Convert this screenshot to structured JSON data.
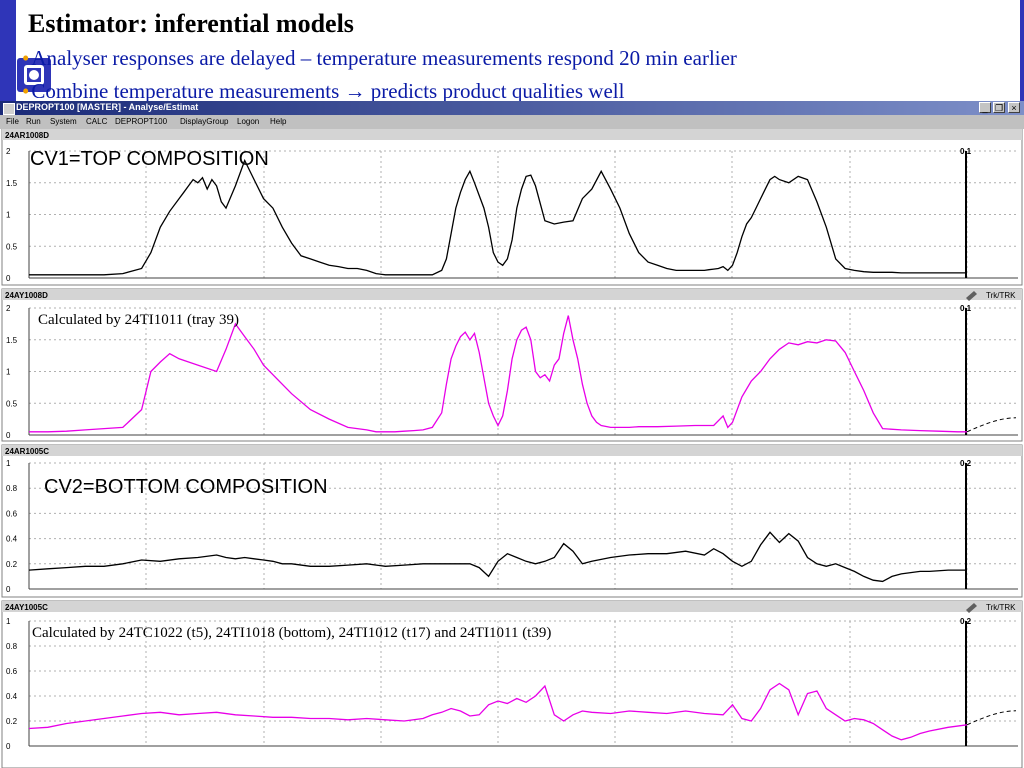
{
  "slide": {
    "title": "Estimator: inferential models",
    "bullet1": "Analyser responses are delayed – temperature measurements respond 20 min earlier",
    "bullet2": "Combine temperature measurements → predicts product qualities well",
    "accent_color": "#2f35b8",
    "bullet_color": "#0a1aa6"
  },
  "window": {
    "title": "DEPROPT100 [MASTER]  - Analyse/Estimat",
    "buttons": {
      "minimize": "_",
      "restore": "❐",
      "close": "×"
    },
    "menu": [
      "File",
      "Run",
      "System",
      "CALC",
      "DEPROPT100",
      "DisplayGroup",
      "Logon",
      "Help"
    ]
  },
  "chart_data": [
    {
      "type": "line",
      "panel_title": "24AR1008D",
      "label": "CV1=TOP COMPOSITION",
      "value_label": "0.1",
      "ylim": [
        0,
        2
      ],
      "yticks": [
        "0",
        "0.5",
        "1",
        "1.5",
        "2"
      ],
      "grid": true,
      "color": "#000000",
      "x": [
        0,
        4,
        8,
        12,
        16,
        20,
        24,
        26,
        28,
        30,
        32,
        33,
        34,
        35,
        36,
        37,
        38,
        39,
        40,
        41,
        42,
        44,
        46,
        48,
        50,
        52,
        54,
        56,
        58,
        60,
        62,
        64,
        66,
        68,
        70,
        72,
        74,
        76,
        78,
        80,
        82,
        84,
        86,
        88,
        89,
        90,
        91,
        92,
        93,
        94,
        95,
        96,
        97,
        98,
        99,
        100,
        101,
        102,
        103,
        104,
        105,
        106,
        107,
        108,
        110,
        112,
        114,
        116,
        118,
        120,
        122,
        124,
        126,
        128,
        130,
        132,
        134,
        136,
        138,
        140,
        141,
        142,
        143,
        144,
        145,
        146,
        147,
        148,
        149,
        150,
        151,
        152,
        153,
        154,
        155,
        156,
        157,
        158,
        159,
        160,
        162,
        164,
        166,
        168,
        170,
        172,
        174,
        176,
        178,
        180,
        182,
        184,
        186,
        188,
        190,
        192,
        194,
        196,
        198,
        200
      ],
      "values": [
        0.05,
        0.05,
        0.05,
        0.05,
        0.05,
        0.07,
        0.15,
        0.4,
        0.8,
        1.05,
        1.25,
        1.35,
        1.45,
        1.55,
        1.5,
        1.58,
        1.4,
        1.55,
        1.45,
        1.2,
        1.1,
        1.45,
        1.85,
        1.55,
        1.25,
        1.1,
        0.8,
        0.55,
        0.35,
        0.3,
        0.25,
        0.2,
        0.18,
        0.15,
        0.15,
        0.12,
        0.07,
        0.05,
        0.05,
        0.05,
        0.05,
        0.05,
        0.05,
        0.12,
        0.3,
        0.7,
        1.1,
        1.35,
        1.55,
        1.68,
        1.5,
        1.3,
        1.1,
        0.8,
        0.4,
        0.25,
        0.2,
        0.3,
        0.6,
        1.1,
        1.4,
        1.6,
        1.62,
        1.45,
        0.9,
        0.85,
        0.88,
        0.9,
        1.25,
        1.4,
        1.68,
        1.4,
        1.1,
        0.7,
        0.4,
        0.25,
        0.2,
        0.15,
        0.12,
        0.12,
        0.12,
        0.12,
        0.12,
        0.12,
        0.13,
        0.14,
        0.15,
        0.18,
        0.12,
        0.2,
        0.4,
        0.65,
        0.85,
        0.95,
        1.1,
        1.25,
        1.4,
        1.55,
        1.6,
        1.55,
        1.5,
        1.6,
        1.55,
        1.2,
        0.8,
        0.3,
        0.15,
        0.12,
        0.1,
        0.09,
        0.09,
        0.09,
        0.08,
        0.08,
        0.08,
        0.08,
        0.08,
        0.08,
        0.08,
        0.08
      ]
    },
    {
      "type": "line",
      "panel_title": "24AY1008D",
      "label": "Calculated by 24TI1011 (tray 39)",
      "value_label": "0.1",
      "trk_label": "Trk/TRK",
      "ylim": [
        0,
        2
      ],
      "yticks": [
        "0",
        "0.5",
        "1",
        "1.5",
        "2"
      ],
      "grid": true,
      "color": "#e800e8",
      "x": [
        0,
        4,
        8,
        12,
        16,
        20,
        24,
        26,
        28,
        30,
        32,
        36,
        40,
        42,
        44,
        46,
        48,
        50,
        52,
        56,
        60,
        64,
        68,
        72,
        74,
        76,
        78,
        80,
        82,
        84,
        86,
        88,
        89,
        90,
        91,
        92,
        93,
        94,
        95,
        96,
        97,
        98,
        99,
        100,
        101,
        102,
        103,
        104,
        105,
        106,
        107,
        108,
        109,
        110,
        111,
        112,
        113,
        114,
        115,
        116,
        117,
        118,
        119,
        120,
        121,
        122,
        124,
        126,
        128,
        130,
        134,
        138,
        142,
        146,
        148,
        149,
        150,
        152,
        154,
        156,
        158,
        160,
        162,
        164,
        166,
        168,
        170,
        172,
        174,
        176,
        178,
        180,
        182,
        186,
        190,
        194,
        198,
        200
      ],
      "values": [
        0.05,
        0.05,
        0.06,
        0.08,
        0.1,
        0.12,
        0.4,
        1.0,
        1.15,
        1.28,
        1.2,
        1.1,
        1.0,
        1.35,
        1.75,
        1.55,
        1.35,
        1.1,
        0.95,
        0.65,
        0.4,
        0.25,
        0.12,
        0.08,
        0.05,
        0.05,
        0.05,
        0.06,
        0.07,
        0.08,
        0.12,
        0.35,
        0.8,
        1.2,
        1.4,
        1.55,
        1.62,
        1.5,
        1.6,
        1.3,
        0.9,
        0.5,
        0.3,
        0.15,
        0.3,
        0.7,
        1.2,
        1.5,
        1.65,
        1.7,
        1.5,
        1.0,
        0.9,
        0.95,
        0.85,
        1.1,
        1.2,
        1.6,
        1.88,
        1.5,
        1.2,
        0.8,
        0.5,
        0.3,
        0.2,
        0.15,
        0.12,
        0.12,
        0.12,
        0.13,
        0.13,
        0.14,
        0.15,
        0.15,
        0.3,
        0.12,
        0.2,
        0.6,
        0.85,
        1.0,
        1.2,
        1.35,
        1.45,
        1.42,
        1.47,
        1.45,
        1.5,
        1.48,
        1.3,
        1.0,
        0.7,
        0.35,
        0.1,
        0.08,
        0.07,
        0.06,
        0.05,
        0.05
      ]
    },
    {
      "type": "line",
      "panel_title": "24AR1005C",
      "label": "CV2=BOTTOM COMPOSITION",
      "value_label": "0.2",
      "ylim": [
        0,
        1
      ],
      "yticks": [
        "0",
        "0.2",
        "0.4",
        "0.6",
        "0.8",
        "1"
      ],
      "grid": true,
      "color": "#000000",
      "x": [
        0,
        4,
        8,
        12,
        16,
        20,
        24,
        28,
        32,
        36,
        40,
        42,
        44,
        46,
        48,
        50,
        52,
        54,
        56,
        60,
        64,
        68,
        72,
        76,
        80,
        84,
        88,
        92,
        94,
        96,
        98,
        100,
        102,
        104,
        106,
        108,
        110,
        112,
        114,
        116,
        118,
        120,
        124,
        128,
        132,
        136,
        140,
        144,
        146,
        148,
        150,
        152,
        154,
        156,
        158,
        160,
        162,
        164,
        166,
        168,
        170,
        172,
        174,
        176,
        178,
        180,
        182,
        184,
        186,
        188,
        190,
        192,
        196,
        200
      ],
      "values": [
        0.15,
        0.16,
        0.17,
        0.18,
        0.18,
        0.2,
        0.23,
        0.22,
        0.24,
        0.25,
        0.27,
        0.25,
        0.24,
        0.25,
        0.24,
        0.23,
        0.22,
        0.2,
        0.2,
        0.18,
        0.18,
        0.19,
        0.2,
        0.18,
        0.19,
        0.2,
        0.2,
        0.2,
        0.2,
        0.17,
        0.1,
        0.22,
        0.28,
        0.25,
        0.22,
        0.2,
        0.22,
        0.25,
        0.36,
        0.3,
        0.2,
        0.22,
        0.25,
        0.27,
        0.28,
        0.28,
        0.3,
        0.27,
        0.32,
        0.28,
        0.22,
        0.18,
        0.22,
        0.35,
        0.45,
        0.37,
        0.44,
        0.38,
        0.25,
        0.2,
        0.18,
        0.2,
        0.17,
        0.14,
        0.1,
        0.07,
        0.06,
        0.1,
        0.12,
        0.13,
        0.14,
        0.14,
        0.15,
        0.15
      ]
    },
    {
      "type": "line",
      "panel_title": "24AY1005C",
      "label": "Calculated by 24TC1022 (t5), 24TI1018 (bottom), 24TI1012 (t17) and 24TI1011 (t39)",
      "value_label": "0.2",
      "trk_label": "Trk/TRK",
      "ylim": [
        0,
        1
      ],
      "yticks": [
        "0",
        "0.2",
        "0.4",
        "0.6",
        "0.8",
        "1"
      ],
      "grid": true,
      "color": "#e800e8",
      "x": [
        0,
        4,
        8,
        12,
        16,
        20,
        24,
        28,
        32,
        36,
        40,
        44,
        48,
        52,
        56,
        60,
        64,
        68,
        72,
        76,
        80,
        84,
        86,
        88,
        90,
        92,
        94,
        96,
        98,
        100,
        102,
        104,
        106,
        108,
        110,
        112,
        114,
        116,
        118,
        120,
        124,
        128,
        132,
        136,
        140,
        144,
        148,
        150,
        152,
        154,
        156,
        158,
        160,
        162,
        164,
        166,
        168,
        170,
        172,
        174,
        176,
        178,
        180,
        182,
        184,
        186,
        188,
        190,
        192,
        196,
        200
      ],
      "values": [
        0.14,
        0.15,
        0.18,
        0.2,
        0.22,
        0.24,
        0.26,
        0.27,
        0.25,
        0.26,
        0.27,
        0.25,
        0.24,
        0.23,
        0.23,
        0.22,
        0.22,
        0.21,
        0.22,
        0.21,
        0.2,
        0.22,
        0.25,
        0.27,
        0.3,
        0.28,
        0.24,
        0.25,
        0.33,
        0.36,
        0.34,
        0.38,
        0.35,
        0.4,
        0.48,
        0.25,
        0.2,
        0.25,
        0.28,
        0.27,
        0.26,
        0.28,
        0.27,
        0.26,
        0.28,
        0.26,
        0.25,
        0.33,
        0.22,
        0.2,
        0.3,
        0.45,
        0.5,
        0.45,
        0.25,
        0.42,
        0.44,
        0.3,
        0.25,
        0.2,
        0.22,
        0.21,
        0.18,
        0.13,
        0.08,
        0.05,
        0.07,
        0.1,
        0.12,
        0.15,
        0.17
      ]
    }
  ]
}
